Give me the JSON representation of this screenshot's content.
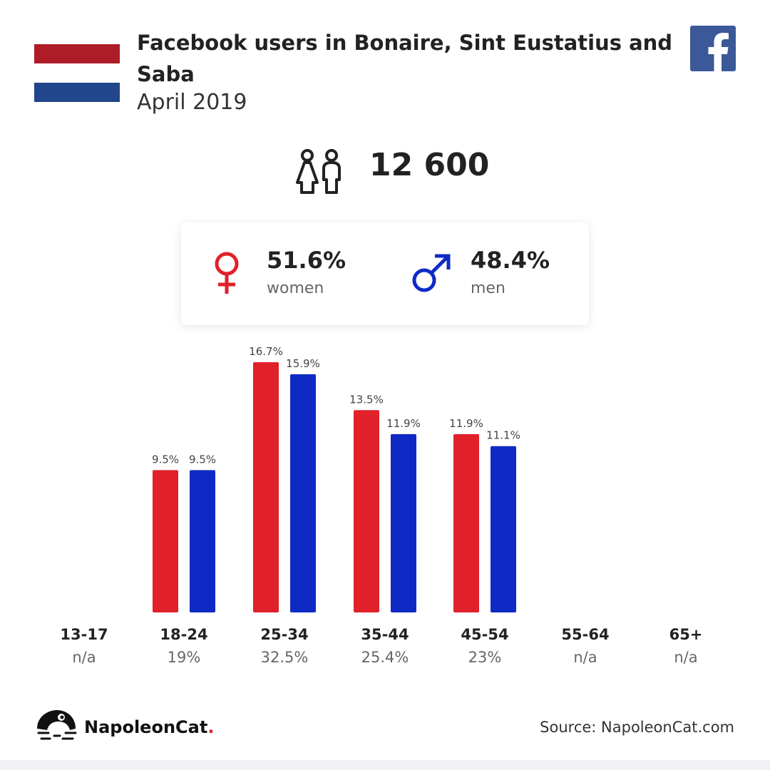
{
  "header": {
    "title": "Facebook users in Bonaire, Sint Eustatius and Saba",
    "subtitle": "April 2019"
  },
  "icons": {
    "flag": "netherlands-flag-icon",
    "facebook": "facebook-logo-icon",
    "users": "users-icon",
    "female": "female-symbol-icon",
    "male": "male-symbol-icon",
    "brand": "napoleoncat-logo-icon"
  },
  "totals": {
    "users": "12 600"
  },
  "gender": {
    "women_pct": "51.6%",
    "women_label": "women",
    "men_pct": "48.4%",
    "men_label": "men"
  },
  "colors": {
    "women": "#e0212a",
    "men": "#0f2ac4",
    "flag_red": "#ae1c28",
    "flag_blue": "#21468b",
    "facebook": "#3b5998"
  },
  "chart_data": {
    "type": "bar",
    "categories": [
      "13-17",
      "18-24",
      "25-34",
      "35-44",
      "45-54",
      "55-64",
      "65+"
    ],
    "series": [
      {
        "name": "women",
        "values": [
          null,
          9.5,
          16.7,
          13.5,
          11.9,
          null,
          null
        ],
        "labels": [
          "",
          "9.5%",
          "16.7%",
          "13.5%",
          "11.9%",
          "",
          ""
        ]
      },
      {
        "name": "men",
        "values": [
          null,
          9.5,
          15.9,
          11.9,
          11.1,
          null,
          null
        ],
        "labels": [
          "",
          "9.5%",
          "15.9%",
          "11.9%",
          "11.1%",
          "",
          ""
        ]
      }
    ],
    "category_totals": [
      "n/a",
      "19%",
      "32.5%",
      "25.4%",
      "23%",
      "n/a",
      "n/a"
    ],
    "ylim": [
      0,
      16.7
    ],
    "grid": false,
    "legend": "none"
  },
  "footer": {
    "brand": "NapoleonCat",
    "brand_dot": ".",
    "source": "Source: NapoleonCat.com"
  }
}
